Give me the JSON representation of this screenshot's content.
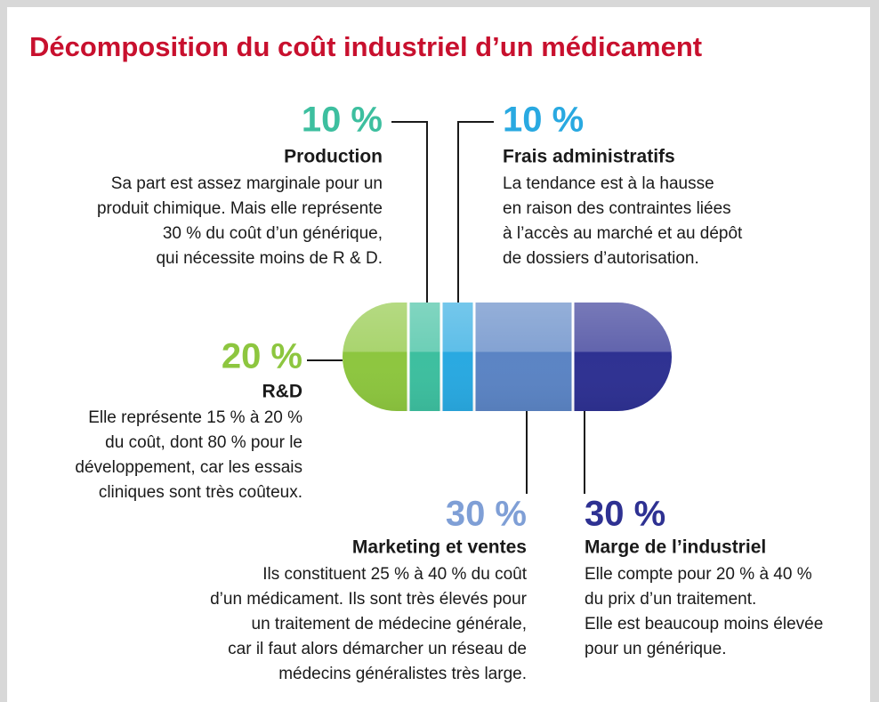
{
  "chart_data": {
    "type": "pill",
    "title": "Décomposition du coût industriel d’un médicament",
    "categories": [
      "R&D",
      "Production",
      "Frais administratifs",
      "Marketing et ventes",
      "Marge de l’industriel"
    ],
    "values": [
      20,
      10,
      10,
      30,
      30
    ],
    "value_labels": [
      "20 %",
      "10 %",
      "10 %",
      "30 %",
      "30 %"
    ],
    "colors": [
      "#8dc63f",
      "#3dbf9f",
      "#29a9e1",
      "#5b84c4",
      "#2e3192"
    ],
    "descriptions": [
      [
        "Elle représente 15 % à 20 %",
        "du coût, dont 80 % pour le",
        "développement, car les essais",
        "cliniques sont très coûteux."
      ],
      [
        "Sa part est assez  marginale pour un",
        "produit chimique. Mais elle représente",
        "30 % du coût d’un générique,",
        "qui nécessite moins de R & D."
      ],
      [
        "La tendance est à la hausse",
        "en raison des contraintes liées",
        "à l’accès au marché et au dépôt",
        "de dossiers d’autorisation."
      ],
      [
        "Ils constituent 25 % à 40 % du coût",
        "d’un médicament. Ils sont très élevés pour",
        "un traitement de médecine générale,",
        "car il faut alors démarcher un réseau de",
        "médecins généralistes très large."
      ],
      [
        "Elle compte pour 20 % à 40 %",
        "du prix d’un traitement.",
        "Elle est beaucoup moins élevée",
        "pour un générique."
      ]
    ]
  }
}
